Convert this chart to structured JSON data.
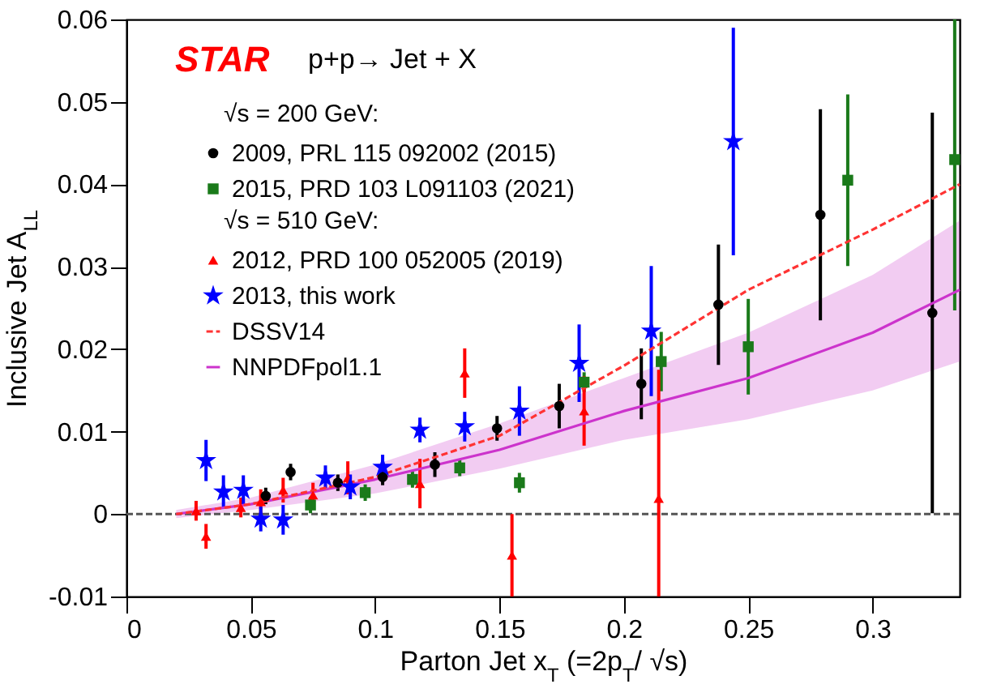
{
  "chart_data": {
    "type": "scatter",
    "xlabel": "Parton Jet x$_{T}$ (=2p$_{T}$/ √s)",
    "ylabel": "Inclusive Jet A$_{LL}$",
    "annotations": [
      "STAR",
      "p+p→ Jet + X",
      "√s = 200 GeV:",
      "√s = 510 GeV:"
    ],
    "xlim": [
      0,
      0.335
    ],
    "xticks": [
      0,
      0.05,
      0.1,
      0.15,
      0.2,
      0.25,
      0.3
    ],
    "ylim": [
      -0.01,
      0.06
    ],
    "yticks": [
      -0.01,
      0,
      0.01,
      0.02,
      0.03,
      0.04,
      0.05,
      0.06
    ],
    "legend": "top left",
    "ref_lines": [
      {
        "axis": "y",
        "value": 0,
        "line_style": "dashed",
        "color": "#555555"
      }
    ],
    "series": [
      {
        "name": "2009, PRL 115 092002 (2015)",
        "type": "scatter",
        "marker": "circle",
        "color": "#000000",
        "x": [
          0.056,
          0.066,
          0.085,
          0.103,
          0.124,
          0.149,
          0.174,
          0.207,
          0.238,
          0.279,
          0.324
        ],
        "values": [
          0.0022,
          0.0051,
          0.0038,
          0.0045,
          0.006,
          0.0104,
          0.0131,
          0.0158,
          0.0254,
          0.0363,
          0.0244
        ],
        "errors": [
          0.001,
          0.001,
          0.001,
          0.001,
          0.0015,
          0.0015,
          0.0027,
          0.0043,
          0.0073,
          0.0128,
          0.0243
        ]
      },
      {
        "name": "2015, PRD 103 L091103 (2021)",
        "type": "scatter",
        "marker": "square",
        "color": "#1a7a1a",
        "x": [
          0.074,
          0.096,
          0.115,
          0.134,
          0.158,
          0.184,
          0.215,
          0.25,
          0.29,
          0.333
        ],
        "values": [
          0.0011,
          0.0026,
          0.0042,
          0.0056,
          0.0038,
          0.016,
          0.0185,
          0.0203,
          0.0405,
          0.043
        ],
        "errors": [
          0.001,
          0.001,
          0.001,
          0.001,
          0.0012,
          0.0012,
          0.0036,
          0.0058,
          0.0104,
          [
            0.0247,
            0.06
          ]
        ]
      },
      {
        "name": "2012, PRD 100 052005 (2019)",
        "type": "scatter",
        "marker": "triangle",
        "color": "#ff0000",
        "x": [
          0.028,
          0.032,
          0.046,
          0.054,
          0.063,
          0.075,
          0.089,
          0.118,
          0.136,
          0.155,
          0.184,
          0.214
        ],
        "values": [
          0.0004,
          -0.0027,
          0.0008,
          0.0015,
          0.0029,
          0.0023,
          0.0044,
          0.0037,
          0.0171,
          -0.005,
          0.0125,
          0.0019
        ],
        "errors": [
          0.0012,
          0.0015,
          0.0012,
          0.0015,
          0.0015,
          0.0015,
          0.002,
          0.003,
          0.003,
          [
            -0.01,
            0.0
          ],
          0.0042,
          [
            -0.01,
            0.0175
          ]
        ]
      },
      {
        "name": "2013, this work",
        "type": "scatter",
        "marker": "star",
        "color": "#0000ff",
        "x": [
          0.032,
          0.039,
          0.047,
          0.054,
          0.063,
          0.08,
          0.09,
          0.103,
          0.118,
          0.136,
          0.158,
          0.182,
          0.211,
          0.244
        ],
        "values": [
          0.0065,
          0.0027,
          0.0029,
          -0.0006,
          -0.0007,
          0.0044,
          0.0033,
          0.0057,
          0.0102,
          0.0106,
          0.0125,
          0.0183,
          0.0222,
          0.0452
        ],
        "errors": [
          0.0025,
          0.002,
          0.0018,
          0.0015,
          0.0018,
          0.0015,
          0.0015,
          0.0015,
          0.0015,
          0.0018,
          0.003,
          0.0047,
          0.0079,
          0.0138
        ]
      },
      {
        "name": "DSSV14",
        "type": "line",
        "line_style": "dashed",
        "color": "#ff3333",
        "x": [
          0.02,
          0.05,
          0.1,
          0.15,
          0.2,
          0.25,
          0.3,
          0.335
        ],
        "values": [
          0,
          0.0012,
          0.0045,
          0.0095,
          0.018,
          0.0272,
          0.0345,
          0.04
        ]
      },
      {
        "name": "NNPDFpol1.1",
        "type": "line",
        "line_style": "solid",
        "color": "#cc33cc",
        "x": [
          0.02,
          0.05,
          0.1,
          0.15,
          0.2,
          0.25,
          0.3,
          0.335
        ],
        "values": [
          0,
          0.0012,
          0.0042,
          0.0078,
          0.0125,
          0.0165,
          0.022,
          0.0272
        ],
        "lower": [
          -0.0005,
          0.0005,
          0.0025,
          0.0055,
          0.009,
          0.0115,
          0.015,
          0.0185
        ],
        "upper": [
          0.0005,
          0.002,
          0.006,
          0.011,
          0.0165,
          0.022,
          0.029,
          0.0356
        ]
      }
    ]
  }
}
